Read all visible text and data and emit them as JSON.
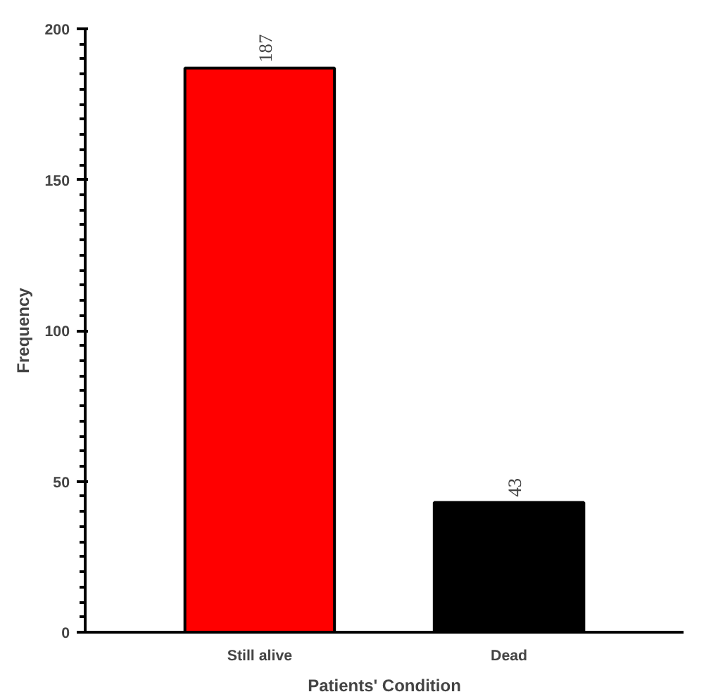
{
  "chart_data": {
    "type": "bar",
    "xlabel": "Patients' Condition",
    "ylabel": "Frequency",
    "categories": [
      "Still alive",
      "Dead"
    ],
    "values": [
      187,
      43
    ],
    "colors": [
      "#ff0000",
      "#000000"
    ],
    "ylim": [
      0,
      200
    ],
    "yticks": [
      0,
      50,
      100,
      150,
      200
    ],
    "grid": false,
    "data_labels": true
  }
}
